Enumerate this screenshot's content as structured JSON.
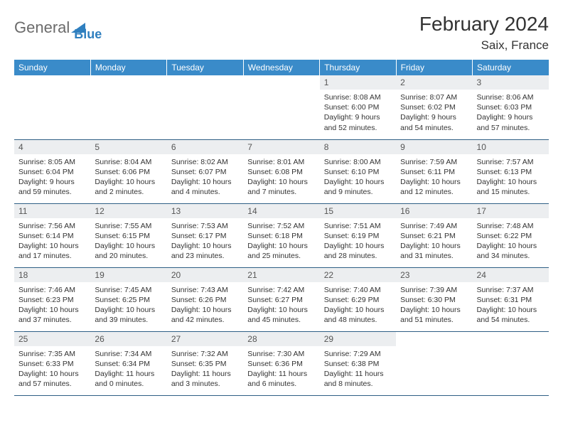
{
  "brand": {
    "part1": "General",
    "part2": "Blue"
  },
  "title": "February 2024",
  "subtitle": "Saix, France",
  "colors": {
    "header_bg": "#3a8bc9",
    "header_text": "#ffffff",
    "daynum_bg": "#eceef0",
    "rule": "#2f5f85",
    "logo_accent": "#2f7fbf"
  },
  "day_headers": [
    "Sunday",
    "Monday",
    "Tuesday",
    "Wednesday",
    "Thursday",
    "Friday",
    "Saturday"
  ],
  "weeks": [
    [
      null,
      null,
      null,
      null,
      {
        "n": "1",
        "sr": "8:08 AM",
        "ss": "6:00 PM",
        "dl": "9 hours and 52 minutes."
      },
      {
        "n": "2",
        "sr": "8:07 AM",
        "ss": "6:02 PM",
        "dl": "9 hours and 54 minutes."
      },
      {
        "n": "3",
        "sr": "8:06 AM",
        "ss": "6:03 PM",
        "dl": "9 hours and 57 minutes."
      }
    ],
    [
      {
        "n": "4",
        "sr": "8:05 AM",
        "ss": "6:04 PM",
        "dl": "9 hours and 59 minutes."
      },
      {
        "n": "5",
        "sr": "8:04 AM",
        "ss": "6:06 PM",
        "dl": "10 hours and 2 minutes."
      },
      {
        "n": "6",
        "sr": "8:02 AM",
        "ss": "6:07 PM",
        "dl": "10 hours and 4 minutes."
      },
      {
        "n": "7",
        "sr": "8:01 AM",
        "ss": "6:08 PM",
        "dl": "10 hours and 7 minutes."
      },
      {
        "n": "8",
        "sr": "8:00 AM",
        "ss": "6:10 PM",
        "dl": "10 hours and 9 minutes."
      },
      {
        "n": "9",
        "sr": "7:59 AM",
        "ss": "6:11 PM",
        "dl": "10 hours and 12 minutes."
      },
      {
        "n": "10",
        "sr": "7:57 AM",
        "ss": "6:13 PM",
        "dl": "10 hours and 15 minutes."
      }
    ],
    [
      {
        "n": "11",
        "sr": "7:56 AM",
        "ss": "6:14 PM",
        "dl": "10 hours and 17 minutes."
      },
      {
        "n": "12",
        "sr": "7:55 AM",
        "ss": "6:15 PM",
        "dl": "10 hours and 20 minutes."
      },
      {
        "n": "13",
        "sr": "7:53 AM",
        "ss": "6:17 PM",
        "dl": "10 hours and 23 minutes."
      },
      {
        "n": "14",
        "sr": "7:52 AM",
        "ss": "6:18 PM",
        "dl": "10 hours and 25 minutes."
      },
      {
        "n": "15",
        "sr": "7:51 AM",
        "ss": "6:19 PM",
        "dl": "10 hours and 28 minutes."
      },
      {
        "n": "16",
        "sr": "7:49 AM",
        "ss": "6:21 PM",
        "dl": "10 hours and 31 minutes."
      },
      {
        "n": "17",
        "sr": "7:48 AM",
        "ss": "6:22 PM",
        "dl": "10 hours and 34 minutes."
      }
    ],
    [
      {
        "n": "18",
        "sr": "7:46 AM",
        "ss": "6:23 PM",
        "dl": "10 hours and 37 minutes."
      },
      {
        "n": "19",
        "sr": "7:45 AM",
        "ss": "6:25 PM",
        "dl": "10 hours and 39 minutes."
      },
      {
        "n": "20",
        "sr": "7:43 AM",
        "ss": "6:26 PM",
        "dl": "10 hours and 42 minutes."
      },
      {
        "n": "21",
        "sr": "7:42 AM",
        "ss": "6:27 PM",
        "dl": "10 hours and 45 minutes."
      },
      {
        "n": "22",
        "sr": "7:40 AM",
        "ss": "6:29 PM",
        "dl": "10 hours and 48 minutes."
      },
      {
        "n": "23",
        "sr": "7:39 AM",
        "ss": "6:30 PM",
        "dl": "10 hours and 51 minutes."
      },
      {
        "n": "24",
        "sr": "7:37 AM",
        "ss": "6:31 PM",
        "dl": "10 hours and 54 minutes."
      }
    ],
    [
      {
        "n": "25",
        "sr": "7:35 AM",
        "ss": "6:33 PM",
        "dl": "10 hours and 57 minutes."
      },
      {
        "n": "26",
        "sr": "7:34 AM",
        "ss": "6:34 PM",
        "dl": "11 hours and 0 minutes."
      },
      {
        "n": "27",
        "sr": "7:32 AM",
        "ss": "6:35 PM",
        "dl": "11 hours and 3 minutes."
      },
      {
        "n": "28",
        "sr": "7:30 AM",
        "ss": "6:36 PM",
        "dl": "11 hours and 6 minutes."
      },
      {
        "n": "29",
        "sr": "7:29 AM",
        "ss": "6:38 PM",
        "dl": "11 hours and 8 minutes."
      },
      null,
      null
    ]
  ],
  "labels": {
    "sunrise": "Sunrise:",
    "sunset": "Sunset:",
    "daylight": "Daylight:"
  }
}
